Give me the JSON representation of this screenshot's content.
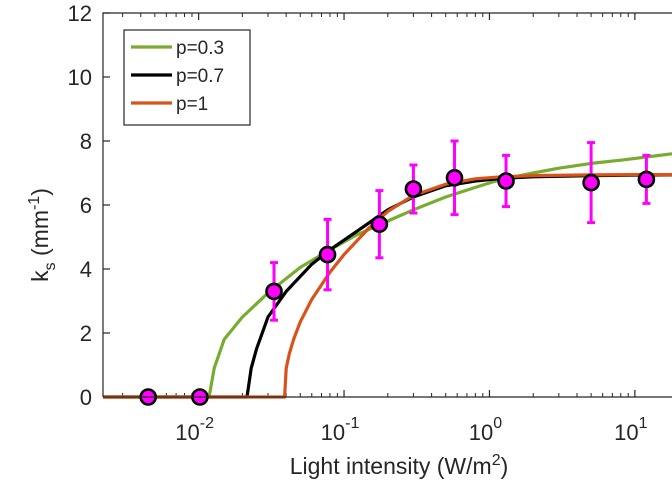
{
  "chart_data": {
    "type": "line",
    "xlabel": "Light intensity (W/m",
    "xlabel_sup": "2",
    "xlabel_close": ")",
    "ylabel": "k",
    "ylabel_sub": "s",
    "ylabel_unit": " (mm",
    "ylabel_unit_sup": "-1",
    "ylabel_close": ")",
    "x_scale": "log",
    "xlim": [
      0.0022,
      18
    ],
    "ylim": [
      0,
      12
    ],
    "grid": false,
    "legend_position": "top-left",
    "x_ticks": [
      {
        "value": 0.01,
        "base": "10",
        "exp": "-2"
      },
      {
        "value": 0.1,
        "base": "10",
        "exp": "-1"
      },
      {
        "value": 1,
        "base": "10",
        "exp": "0"
      },
      {
        "value": 10,
        "base": "10",
        "exp": "1"
      }
    ],
    "y_ticks": [
      {
        "value": 0,
        "label": "0"
      },
      {
        "value": 2,
        "label": "2"
      },
      {
        "value": 4,
        "label": "4"
      },
      {
        "value": 6,
        "label": "6"
      },
      {
        "value": 8,
        "label": "8"
      },
      {
        "value": 10,
        "label": "10"
      },
      {
        "value": 12,
        "label": "12"
      }
    ],
    "series": [
      {
        "name": "p=0.3",
        "color": "#77ac30",
        "x": [
          0.0022,
          0.0118,
          0.0128,
          0.015,
          0.02,
          0.03,
          0.05,
          0.08,
          0.12,
          0.2,
          0.3,
          0.5,
          0.8,
          1.2,
          2,
          3,
          5,
          8,
          12,
          18
        ],
        "y": [
          0,
          0,
          0.9,
          1.8,
          2.5,
          3.25,
          4.05,
          4.6,
          5.05,
          5.5,
          5.85,
          6.25,
          6.55,
          6.8,
          7.0,
          7.15,
          7.3,
          7.4,
          7.5,
          7.6
        ]
      },
      {
        "name": "p=0.7",
        "color": "#000000",
        "x": [
          0.0022,
          0.0215,
          0.023,
          0.025,
          0.03,
          0.04,
          0.06,
          0.08,
          0.12,
          0.2,
          0.3,
          0.5,
          0.8,
          1.2,
          2,
          5,
          10,
          18
        ],
        "y": [
          0,
          0,
          0.9,
          1.5,
          2.5,
          3.3,
          4.15,
          4.6,
          5.15,
          5.85,
          6.25,
          6.6,
          6.75,
          6.83,
          6.88,
          6.92,
          6.93,
          6.94
        ]
      },
      {
        "name": "p=1",
        "color": "#d95319",
        "x": [
          0.0022,
          0.039,
          0.04,
          0.042,
          0.045,
          0.05,
          0.06,
          0.08,
          0.1,
          0.15,
          0.2,
          0.3,
          0.5,
          0.8,
          1.2,
          2,
          5,
          10,
          18
        ],
        "y": [
          0,
          0,
          0.9,
          1.35,
          1.8,
          2.35,
          3.05,
          3.9,
          4.45,
          5.3,
          5.8,
          6.3,
          6.65,
          6.82,
          6.88,
          6.92,
          6.94,
          6.95,
          6.95
        ]
      }
    ],
    "data_points": {
      "marker_fill": "#ff00ff",
      "marker_edge": "#000000",
      "errorbar_color": "#ff00ff",
      "x": [
        0.0045,
        0.0102,
        0.033,
        0.077,
        0.175,
        0.3,
        0.575,
        1.3,
        5,
        12
      ],
      "y": [
        0,
        0,
        3.3,
        4.45,
        5.4,
        6.5,
        6.85,
        6.75,
        6.7,
        6.8
      ],
      "err": [
        0,
        0,
        0.9,
        1.1,
        1.05,
        0.75,
        1.15,
        0.8,
        1.25,
        0.75
      ]
    }
  }
}
